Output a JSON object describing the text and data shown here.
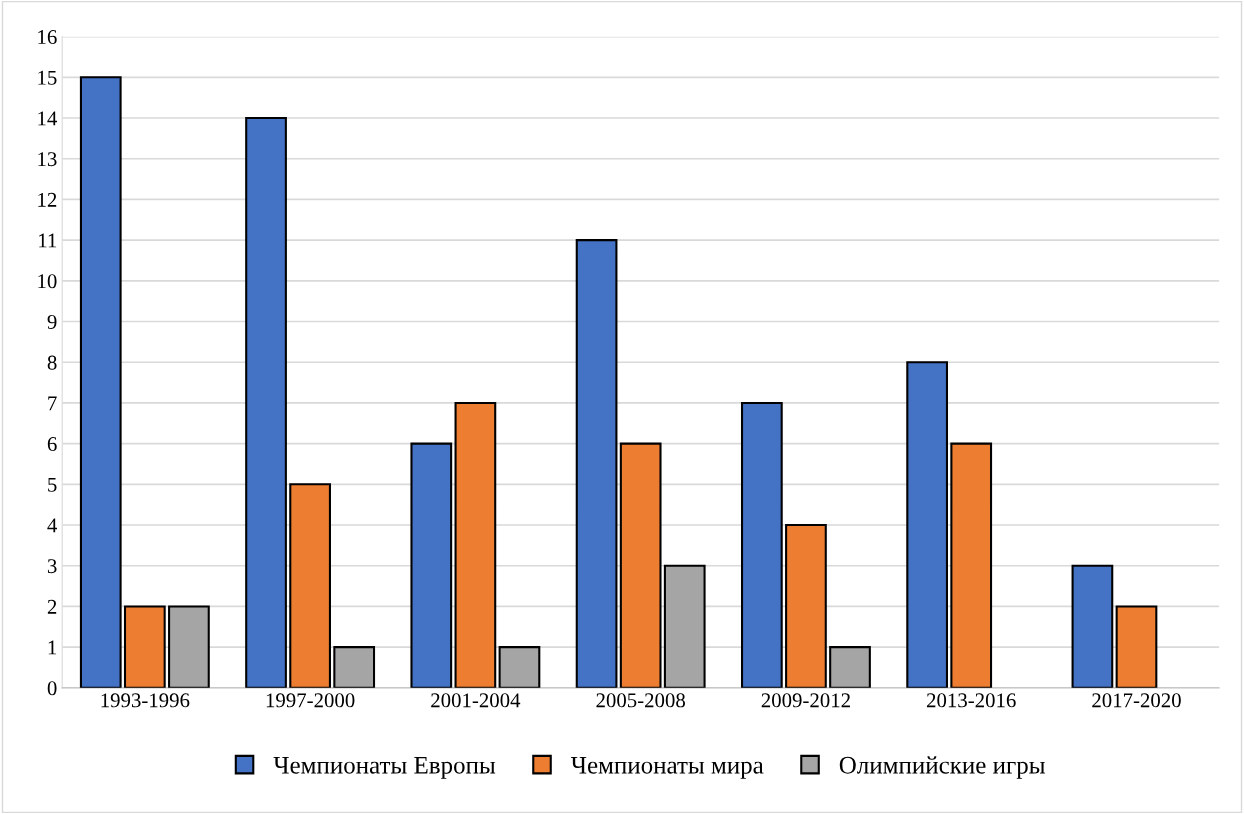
{
  "chart_data": {
    "type": "bar",
    "categories": [
      "1993-1996",
      "1997-2000",
      "2001-2004",
      "2005-2008",
      "2009-2012",
      "2013-2016",
      "2017-2020"
    ],
    "series": [
      {
        "name": "Чемпионаты Европы",
        "color": "#4472c4",
        "values": [
          15,
          14,
          6,
          11,
          7,
          8,
          3
        ]
      },
      {
        "name": "Чемпионаты мира",
        "color": "#ed7d31",
        "values": [
          2,
          5,
          7,
          6,
          4,
          6,
          2
        ]
      },
      {
        "name": "Олимпийские игры",
        "color": "#a5a5a5",
        "values": [
          2,
          1,
          1,
          3,
          1,
          null,
          null
        ]
      }
    ],
    "ylim": [
      0,
      16
    ],
    "yticks": [
      0,
      1,
      2,
      3,
      4,
      5,
      6,
      7,
      8,
      9,
      10,
      11,
      12,
      13,
      14,
      15,
      16
    ],
    "grid": "y",
    "legend": "bottom"
  }
}
